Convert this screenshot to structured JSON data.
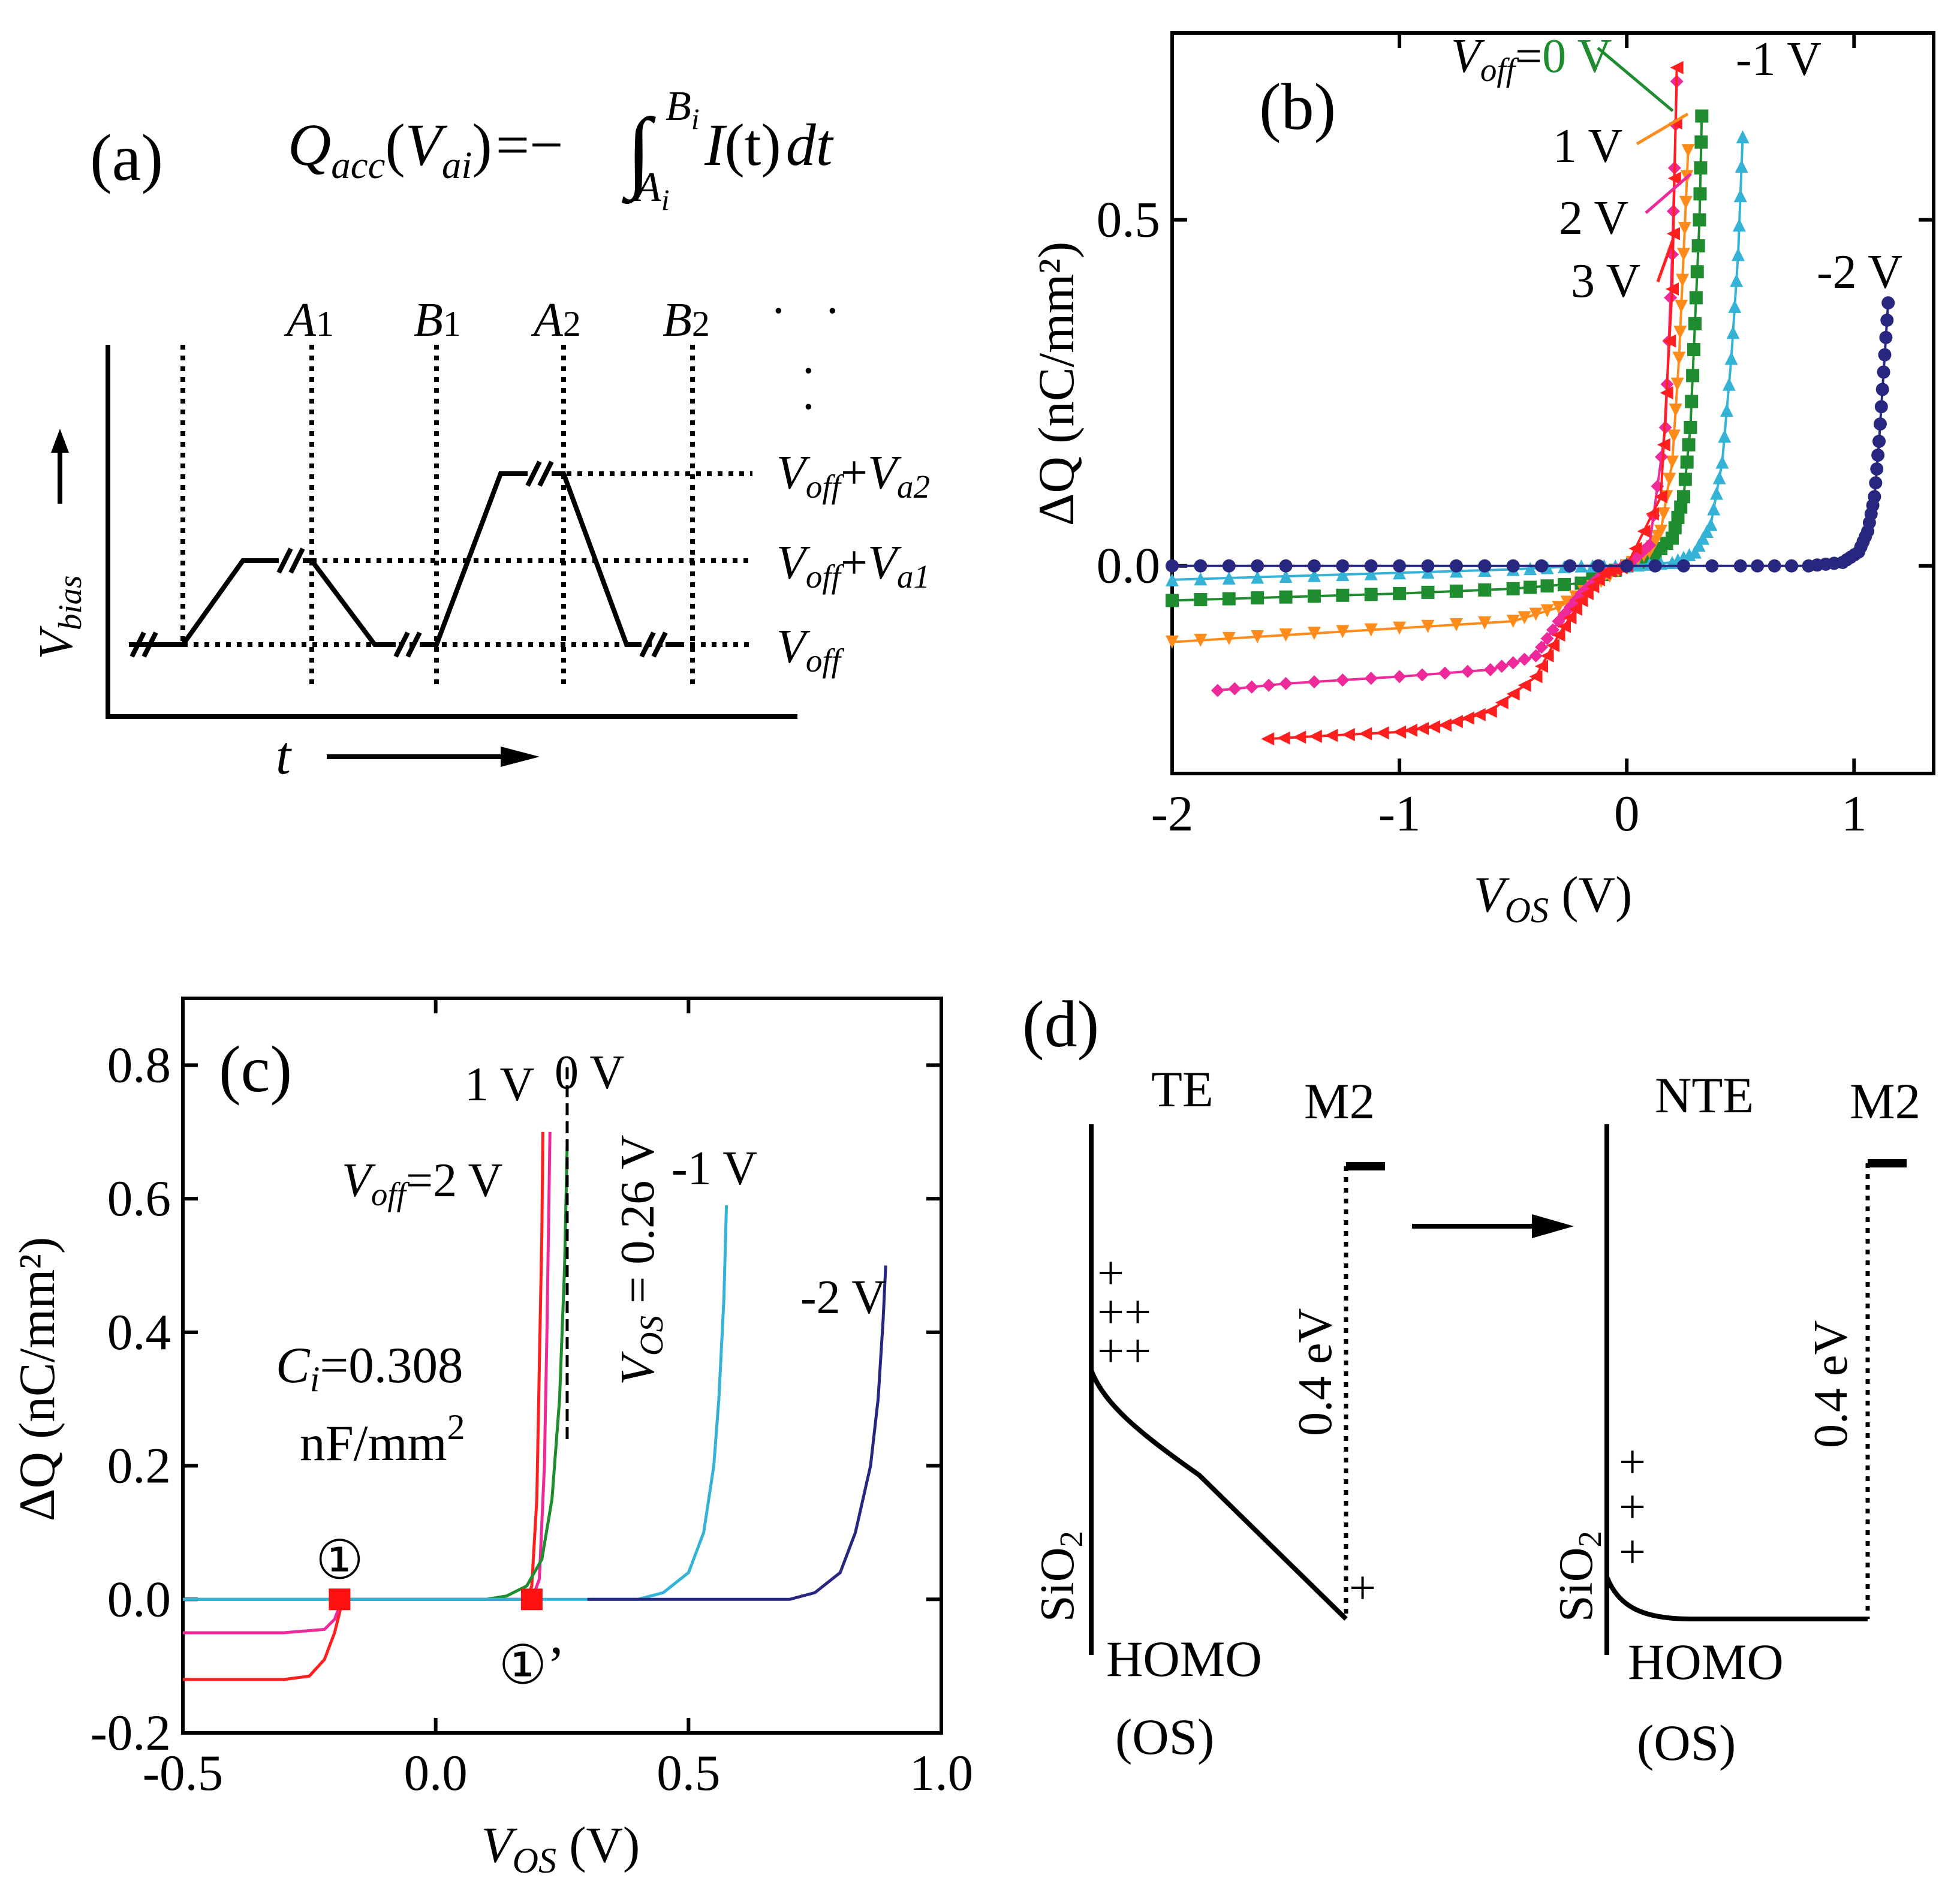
{
  "colors": {
    "black": "#000000",
    "green": "#1e8c2f",
    "orange": "#ff8c1a",
    "magenta": "#ee2a9b",
    "red": "#ff1f1f",
    "cyan": "#35b3d6",
    "navy": "#27277f",
    "marker_red": "#ff1111"
  },
  "panel_a": {
    "label": "(a)",
    "equation": {
      "q": "Q",
      "acc": "acc",
      "lp": "(",
      "v": "V",
      "ai": "ai",
      "rp": ")",
      "eq": "=",
      "minus": "−",
      "integral": "∫",
      "upper": "B",
      "upper_sub": "i",
      "lower": "A",
      "lower_sub": "i",
      "integrand": "I",
      "targ": "(t)",
      "dt": "dt"
    },
    "markers": [
      {
        "letter": "A",
        "sub": "1"
      },
      {
        "letter": "B",
        "sub": "1"
      },
      {
        "letter": "A",
        "sub": "2"
      },
      {
        "letter": "B",
        "sub": "2"
      }
    ],
    "ellipsis": "·",
    "levels": [
      {
        "main": "V",
        "sub": "off",
        "plus": "+",
        "v2": "V",
        "sub2": "a2"
      },
      {
        "main": "V",
        "sub": "off",
        "plus": "+",
        "v2": "V",
        "sub2": "a1"
      },
      {
        "main": "V",
        "sub": "off"
      }
    ],
    "ylabel": {
      "main": "V",
      "sub": "bias"
    },
    "xlabel": "t"
  },
  "panel_b": {
    "label": "(b)",
    "chart_data": {
      "type": "scatter",
      "xlabel": "V",
      "xlabel_sub": "OS",
      "xunit": " (V)",
      "ylabel": "ΔQ (nC/mm²)",
      "xlim": [
        -2,
        1.35
      ],
      "ylim": [
        -0.3,
        0.77
      ],
      "xticks": [
        "-2",
        "-1",
        "0",
        "1"
      ],
      "xtick_values": [
        -2,
        -1,
        0,
        1
      ],
      "yticks": [
        "0.0",
        "0.5"
      ],
      "ytick_values": [
        0,
        0.5
      ],
      "legend_prefix": {
        "v": "V",
        "sub": "off",
        "eq": "="
      },
      "series": [
        {
          "name": "0 V",
          "color": "green",
          "marker": "square",
          "x": [
            -2.0,
            -1.5,
            -1.0,
            -0.5,
            -0.2,
            0.0,
            0.1,
            0.2,
            0.25,
            0.28,
            0.3,
            0.32,
            0.33
          ],
          "y": [
            -0.05,
            -0.045,
            -0.04,
            -0.033,
            -0.025,
            0.0,
            0.01,
            0.04,
            0.1,
            0.2,
            0.35,
            0.5,
            0.65
          ]
        },
        {
          "name": "-1 V",
          "color": "cyan",
          "marker": "triangle",
          "x": [
            -2.0,
            -1.5,
            -1.0,
            -0.5,
            -0.2,
            0.0,
            0.2,
            0.3,
            0.37,
            0.42,
            0.46,
            0.49,
            0.51
          ],
          "y": [
            -0.02,
            -0.015,
            -0.01,
            -0.005,
            0.0,
            0.0,
            0.005,
            0.02,
            0.06,
            0.15,
            0.3,
            0.45,
            0.62
          ]
        },
        {
          "name": "1 V",
          "color": "orange",
          "marker": "triangle-down",
          "x": [
            -2.0,
            -1.5,
            -1.0,
            -0.5,
            -0.3,
            -0.15,
            0.0,
            0.1,
            0.15,
            0.2,
            0.23,
            0.25,
            0.27
          ],
          "y": [
            -0.11,
            -0.1,
            -0.09,
            -0.08,
            -0.06,
            -0.03,
            0.0,
            0.02,
            0.05,
            0.15,
            0.3,
            0.45,
            0.6
          ]
        },
        {
          "name": "2 V",
          "color": "magenta",
          "marker": "diamond",
          "x": [
            -1.8,
            -1.5,
            -1.0,
            -0.6,
            -0.4,
            -0.3,
            -0.2,
            -0.1,
            0.0,
            0.1,
            0.17,
            0.2,
            0.22
          ],
          "y": [
            -0.18,
            -0.17,
            -0.16,
            -0.15,
            -0.13,
            -0.08,
            -0.04,
            -0.01,
            0.0,
            0.03,
            0.2,
            0.45,
            0.7
          ]
        },
        {
          "name": "3 V",
          "color": "red",
          "marker": "triangle-left",
          "x": [
            -1.58,
            -1.3,
            -1.0,
            -0.8,
            -0.6,
            -0.4,
            -0.3,
            -0.2,
            -0.1,
            0.0,
            0.15,
            0.2,
            0.22
          ],
          "y": [
            -0.25,
            -0.245,
            -0.24,
            -0.23,
            -0.21,
            -0.16,
            -0.1,
            -0.05,
            -0.01,
            0.0,
            0.1,
            0.4,
            0.72
          ]
        },
        {
          "name": "-2 V",
          "color": "navy",
          "marker": "circle",
          "x": [
            -2.0,
            -1.5,
            -1.0,
            -0.5,
            0.0,
            0.5,
            0.8,
            0.95,
            1.02,
            1.06,
            1.09,
            1.11,
            1.13,
            1.15
          ],
          "y": [
            0.0,
            0.0,
            0.0,
            0.0,
            0.0,
            0.0,
            0.0,
            0.005,
            0.02,
            0.05,
            0.1,
            0.18,
            0.28,
            0.38
          ]
        }
      ]
    }
  },
  "panel_c": {
    "label": "(c)",
    "chart_data": {
      "type": "line",
      "xlabel": "V",
      "xlabel_sub": "OS",
      "xunit": " (V)",
      "ylabel": "ΔQ (nC/mm²)",
      "xlim": [
        -0.5,
        1.0
      ],
      "ylim": [
        -0.2,
        0.9
      ],
      "xticks": [
        "-0.5",
        "0.0",
        "0.5",
        "1.0"
      ],
      "xtick_values": [
        -0.5,
        0.0,
        0.5,
        1.0
      ],
      "yticks": [
        "-0.2",
        "0.0",
        "0.2",
        "0.4",
        "0.6",
        "0.8"
      ],
      "ytick_values": [
        -0.2,
        0.0,
        0.2,
        0.4,
        0.6,
        0.8
      ],
      "legend_prefix": {
        "v": "V",
        "sub": "off",
        "eq": "="
      },
      "series": [
        {
          "name": "2 V",
          "color": "red",
          "x": [
            -0.5,
            -0.3,
            -0.25,
            -0.22,
            -0.2,
            -0.19,
            -0.185,
            -0.18,
            0.18,
            0.19,
            0.2,
            0.205,
            0.21,
            0.212
          ],
          "y": [
            -0.12,
            -0.12,
            -0.115,
            -0.09,
            -0.05,
            -0.02,
            -0.005,
            0.0,
            0.0,
            0.02,
            0.15,
            0.35,
            0.55,
            0.7
          ]
        },
        {
          "name": "1 V",
          "color": "magenta",
          "x": [
            -0.5,
            -0.3,
            -0.22,
            -0.2,
            -0.19,
            -0.18,
            0.19,
            0.205,
            0.215,
            0.22,
            0.224,
            0.226
          ],
          "y": [
            -0.05,
            -0.05,
            -0.045,
            -0.03,
            -0.01,
            0.0,
            0.0,
            0.03,
            0.2,
            0.4,
            0.6,
            0.7
          ]
        },
        {
          "name": "0 V",
          "color": "green",
          "x": [
            -0.5,
            0.1,
            0.14,
            0.18,
            0.21,
            0.23,
            0.245,
            0.255,
            0.26
          ],
          "y": [
            0.0,
            0.0,
            0.005,
            0.02,
            0.06,
            0.15,
            0.3,
            0.5,
            0.68
          ]
        },
        {
          "name": "-1 V",
          "color": "cyan",
          "x": [
            -0.5,
            0.4,
            0.45,
            0.5,
            0.53,
            0.55,
            0.56,
            0.57,
            0.575
          ],
          "y": [
            0.0,
            0.0,
            0.01,
            0.04,
            0.1,
            0.2,
            0.3,
            0.45,
            0.59
          ]
        },
        {
          "name": "-2 V",
          "color": "navy",
          "x": [
            0.3,
            0.7,
            0.75,
            0.8,
            0.83,
            0.86,
            0.875,
            0.885,
            0.89
          ],
          "y": [
            0.0,
            0.0,
            0.01,
            0.04,
            0.1,
            0.2,
            0.3,
            0.42,
            0.5
          ]
        }
      ],
      "points": [
        {
          "x": -0.19,
          "y": 0.0
        },
        {
          "x": 0.19,
          "y": 0.0
        }
      ],
      "point_labels": [
        "①",
        "①’"
      ],
      "vline": {
        "x": 0.26,
        "y_from": 0.24,
        "y_to": 0.8
      },
      "vline_label": {
        "v": "V",
        "sub": "OS",
        "rest": " = 0.26 V"
      },
      "ci_text": {
        "c": "C",
        "sub": "i",
        "value": "=0.308",
        "unit": "nF/mm",
        "sup": "2"
      }
    }
  },
  "panel_d": {
    "label": "(d)",
    "left": {
      "title": "TE",
      "metal": "M2",
      "oxide": "SiO",
      "oxide_sub": "2",
      "homo": "HOMO",
      "os": "(OS)",
      "energy": "0.4 eV",
      "plus": "+"
    },
    "right": {
      "title": "NTE",
      "metal": "M2",
      "oxide": "SiO",
      "oxide_sub": "2",
      "homo": "HOMO",
      "os": "(OS)",
      "energy": "0.4 eV",
      "plus": "+"
    }
  }
}
